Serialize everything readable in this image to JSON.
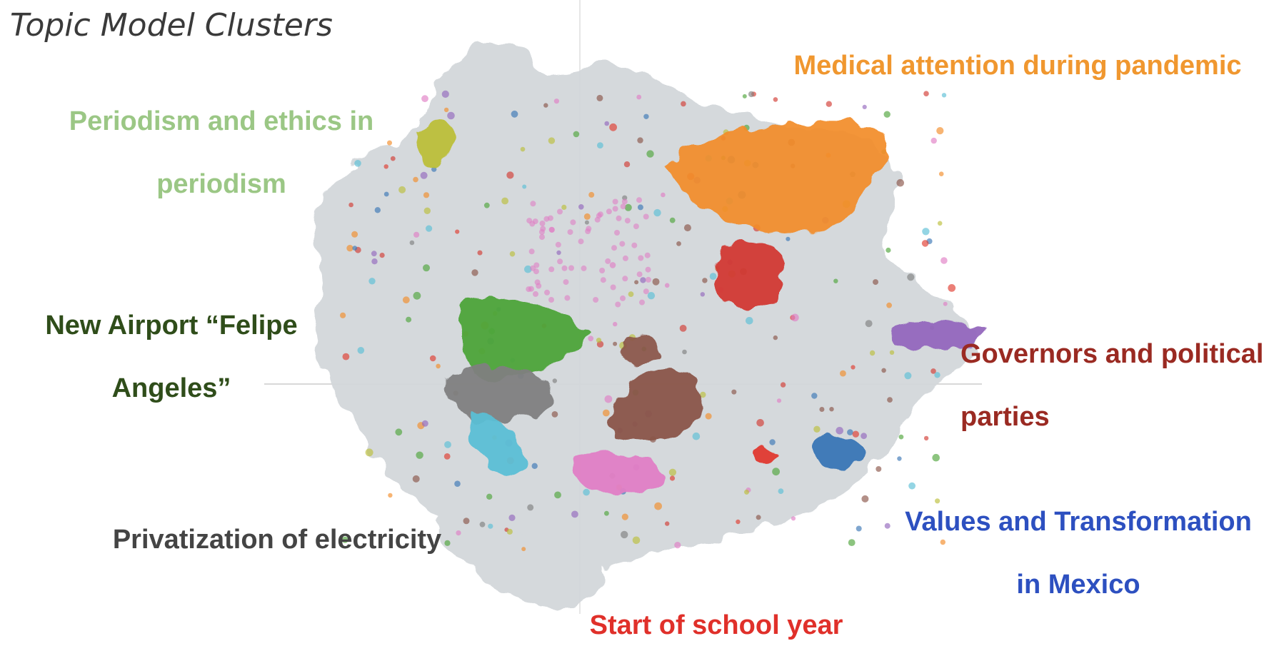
{
  "chart_data": {
    "type": "scatter",
    "title": "Topic Model Clusters",
    "xlabel": "",
    "ylabel": "",
    "grid": false,
    "legend": "none",
    "background_color": "#d3d7db",
    "series": [
      {
        "name": "Medical attention during pandemic",
        "color": "#f28c28"
      },
      {
        "name": "Periodism and ethics in periodism",
        "color": "#bcbf3a"
      },
      {
        "name": "New Airport “Felipe Angeles”",
        "color": "#4ea43a"
      },
      {
        "name": "Governors and political parties",
        "color": "#d23a32"
      },
      {
        "name": "Privatization of electricity",
        "color": "#808080"
      },
      {
        "name": "Values and Transformation in Mexico",
        "color": "#3a76b5"
      },
      {
        "name": "Start of school year",
        "color": "#e03a2e"
      },
      {
        "name": "",
        "color": "#5bbfd5"
      },
      {
        "name": "",
        "color": "#8a5548"
      },
      {
        "name": "",
        "color": "#e07ec5"
      },
      {
        "name": "",
        "color": "#9467bd"
      }
    ],
    "labels": [
      {
        "lines": [
          "Medical attention during pandemic"
        ],
        "color": "#f0972f"
      },
      {
        "lines": [
          "Periodism and ethics in",
          "periodism"
        ],
        "color": "#9bc785"
      },
      {
        "lines": [
          "New Airport “Felipe",
          "Angeles”"
        ],
        "color": "#2f4d1a"
      },
      {
        "lines": [
          "Governors and political",
          "parties"
        ],
        "color": "#9a2a22"
      },
      {
        "lines": [
          "Privatization of electricity"
        ],
        "color": "#444444"
      },
      {
        "lines": [
          "Values and Transformation",
          "in Mexico"
        ],
        "color": "#2d50c0"
      },
      {
        "lines": [
          "Start of school year"
        ],
        "color": "#e0302a"
      }
    ]
  }
}
